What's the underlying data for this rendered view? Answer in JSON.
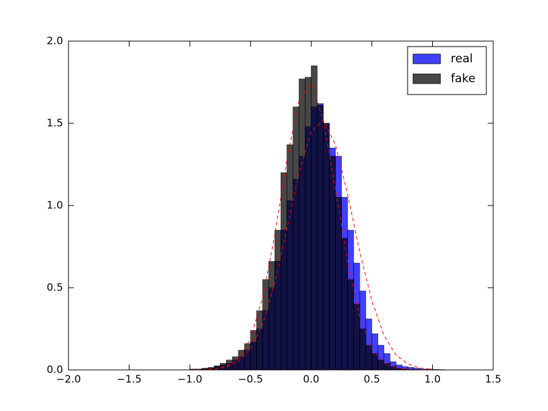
{
  "chart_data": {
    "type": "histogram",
    "bins": [
      -1.0,
      -0.95,
      -0.9,
      -0.85,
      -0.8,
      -0.75,
      -0.7,
      -0.65,
      -0.6,
      -0.55,
      -0.5,
      -0.45,
      -0.4,
      -0.35,
      -0.3,
      -0.25,
      -0.2,
      -0.15,
      -0.1,
      -0.05,
      0.0,
      0.05,
      0.1,
      0.15,
      0.2,
      0.25,
      0.3,
      0.35,
      0.4,
      0.45,
      0.5,
      0.55,
      0.6,
      0.65,
      0.7,
      0.75,
      0.8,
      0.85,
      0.9,
      0.95,
      1.0,
      1.05,
      1.1
    ],
    "series": [
      {
        "name": "real",
        "color": "#0000ff",
        "alpha": 0.75,
        "values": [
          0.005,
          0.005,
          0.01,
          0.01,
          0.02,
          0.03,
          0.04,
          0.06,
          0.08,
          0.12,
          0.17,
          0.25,
          0.36,
          0.5,
          0.66,
          0.85,
          1.03,
          1.16,
          1.3,
          1.48,
          1.6,
          1.62,
          1.5,
          1.35,
          1.3,
          1.05,
          0.85,
          0.65,
          0.48,
          0.31,
          0.22,
          0.15,
          0.1,
          0.05,
          0.03,
          0.02,
          0.015,
          0.01,
          0.005,
          0.005,
          0.003,
          0.002
        ]
      },
      {
        "name": "fake",
        "color": "#000000",
        "alpha": 0.72,
        "values": [
          0.002,
          0.004,
          0.008,
          0.015,
          0.025,
          0.04,
          0.06,
          0.08,
          0.12,
          0.16,
          0.24,
          0.36,
          0.55,
          0.66,
          0.85,
          1.2,
          1.37,
          1.6,
          1.77,
          1.78,
          1.85,
          1.61,
          1.5,
          1.3,
          1.05,
          0.8,
          0.55,
          0.4,
          0.25,
          0.15,
          0.1,
          0.06,
          0.04,
          0.02,
          0.01,
          0.005,
          0.003,
          0.002,
          0.001,
          0,
          0,
          0
        ]
      }
    ],
    "curve_x": [
      -1.0,
      -0.9,
      -0.8,
      -0.7,
      -0.6,
      -0.5,
      -0.4,
      -0.3,
      -0.2,
      -0.1,
      0.0,
      0.1,
      0.2,
      0.3,
      0.4,
      0.5,
      0.6,
      0.7,
      0.8,
      0.9,
      1.0
    ],
    "curves": [
      {
        "color": "#ff0000",
        "values": [
          0.0003,
          0.0014,
          0.005,
          0.018,
          0.052,
          0.13,
          0.28,
          0.53,
          0.86,
          1.2,
          1.45,
          1.52,
          1.37,
          1.07,
          0.72,
          0.42,
          0.21,
          0.09,
          0.035,
          0.011,
          0.003
        ]
      },
      {
        "color": "#ff0000",
        "values": [
          0.0002,
          0.001,
          0.005,
          0.021,
          0.069,
          0.19,
          0.44,
          0.82,
          1.28,
          1.64,
          1.74,
          1.52,
          1.1,
          0.66,
          0.32,
          0.13,
          0.043,
          0.012,
          0.003,
          0.0005,
          0.0001
        ]
      }
    ],
    "xlim": [
      -2.0,
      1.5
    ],
    "xticks": [
      {
        "value": -2.0,
        "label": "−2.0"
      },
      {
        "value": -1.5,
        "label": "−1.5"
      },
      {
        "value": -1.0,
        "label": "−1.0"
      },
      {
        "value": -0.5,
        "label": "−0.5"
      },
      {
        "value": 0.0,
        "label": "0.0"
      },
      0.5,
      {
        "value": 1.0,
        "label": "1.0"
      },
      1.5
    ],
    "ylim": [
      0.0,
      2.0
    ],
    "yticks": [
      {
        "value": 0.0,
        "label": "0.0"
      },
      0.5,
      {
        "value": 1.0,
        "label": "1.0"
      },
      1.5,
      {
        "value": 2.0,
        "label": "2.0"
      }
    ],
    "legend": "upper right"
  }
}
